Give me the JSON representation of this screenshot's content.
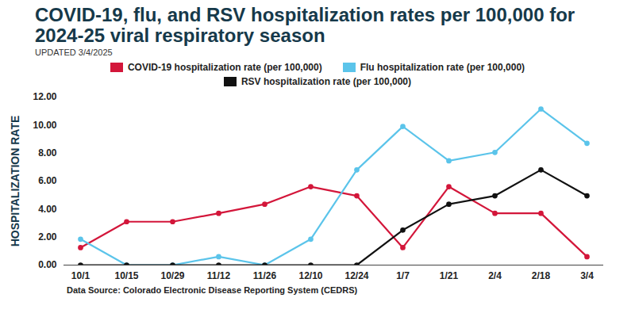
{
  "chart_data": {
    "type": "line",
    "title": "COVID-19, flu, and RSV hospitalization rates per 100,000 for 2024-25 viral respiratory season",
    "subtitle": "UPDATED 3/4/2025",
    "y_label": "HOSPITALIZATION RATE",
    "caption": "Data Source: Colorado Electronic Disease Reporting System (CEDRS)",
    "categories": [
      "10/1",
      "10/15",
      "10/29",
      "11/12",
      "11/26",
      "12/10",
      "12/24",
      "1/7",
      "1/21",
      "2/4",
      "2/18",
      "3/4"
    ],
    "series": [
      {
        "name": "COVID-19 hospitalization rate (per 100,000)",
        "color": "#d3163a",
        "marker": "circle",
        "values": [
          1.25,
          3.1,
          3.1,
          3.7,
          4.35,
          5.6,
          4.95,
          1.25,
          5.6,
          3.7,
          3.7,
          0.6
        ]
      },
      {
        "name": "Flu hospitalization rate (per 100,000)",
        "color": "#5bc4ea",
        "marker": "circle",
        "values": [
          1.85,
          0,
          0,
          0.6,
          0,
          1.85,
          6.8,
          9.9,
          7.45,
          8.05,
          11.15,
          8.7
        ]
      },
      {
        "name": "RSV hospitalization rate (per 100,000)",
        "color": "#111111",
        "marker": "circle",
        "values": [
          0,
          0,
          0,
          0,
          0,
          0,
          0,
          2.5,
          4.35,
          4.95,
          6.8,
          4.95
        ]
      }
    ],
    "ylim": [
      0,
      12
    ],
    "yticks": [
      {
        "value": 0,
        "label": "0.00"
      },
      {
        "value": 2,
        "label": "2.00"
      },
      {
        "value": 4,
        "label": "4.00"
      },
      {
        "value": 6,
        "label": "6.00"
      },
      {
        "value": 8,
        "label": "8.00"
      },
      {
        "value": 10,
        "label": "10.00"
      },
      {
        "value": 12,
        "label": "12.00"
      }
    ],
    "grid": false,
    "legend": "top"
  }
}
